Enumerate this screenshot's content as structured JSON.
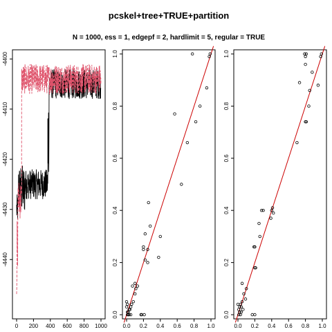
{
  "title": "pcskel+tree+TRUE+partition",
  "subtitle": "N = 1000, ess = 1, edgepf = 2, hardlimit = 5, regular = TRUE",
  "colors": {
    "trace_black": "#000000",
    "trace_red": "#DF536B",
    "diagonal": "#CC0000",
    "axis": "#000000"
  },
  "chart_data": [
    {
      "type": "line",
      "title": "",
      "xlabel": "",
      "ylabel": "",
      "xlim": [
        0,
        1000
      ],
      "ylim": [
        -4451,
        -4399
      ],
      "x_ticks": [
        0,
        200,
        400,
        600,
        800,
        1000
      ],
      "y_ticks": [
        -4400,
        -4410,
        -4420,
        -4430,
        -4440
      ],
      "series": [
        {
          "color": "#000000",
          "style": "solid",
          "segments": [
            {
              "x_range": [
                0,
                20
              ],
              "level": -4430,
              "spread": 3
            },
            {
              "x_range": [
                20,
                100
              ],
              "level": -4426,
              "spread": 5
            },
            {
              "x_range": [
                100,
                370
              ],
              "level": -4425,
              "spread": 3
            },
            {
              "x_range": [
                370,
                385
              ],
              "level": -4415,
              "spread": 8
            },
            {
              "x_range": [
                385,
                1000
              ],
              "level": -4405,
              "spread": 3
            }
          ]
        },
        {
          "color": "#DF536B",
          "style": "dashed",
          "segments": [
            {
              "x_range": [
                0,
                15
              ],
              "level": -4440,
              "spread": 8
            },
            {
              "x_range": [
                15,
                60
              ],
              "level": -4428,
              "spread": 4
            },
            {
              "x_range": [
                60,
                1000
              ],
              "level": -4404,
              "spread": 3
            }
          ]
        }
      ]
    },
    {
      "type": "scatter",
      "title": "",
      "xlabel": "",
      "ylabel": "",
      "xlim": [
        0,
        1
      ],
      "ylim": [
        0,
        1
      ],
      "x_ticks": [
        0,
        0.2,
        0.4,
        0.6,
        0.8,
        1
      ],
      "x_tick_labels": [
        "0.0",
        "0.2",
        "0.4",
        "0.6",
        "0.8",
        "1.0"
      ],
      "y_ticks": [
        0,
        0.2,
        0.4,
        0.6,
        0.8,
        1
      ],
      "y_tick_labels": [
        "0.0",
        "0.2",
        "0.4",
        "0.6",
        "0.8",
        "1.0"
      ],
      "diagonal": true,
      "points": [
        [
          0.78,
          1.0
        ],
        [
          0.99,
          1.0
        ],
        [
          0.98,
          0.99
        ],
        [
          0.95,
          0.87
        ],
        [
          0.87,
          0.8
        ],
        [
          0.82,
          0.74
        ],
        [
          0.57,
          0.77
        ],
        [
          0.72,
          0.66
        ],
        [
          0.65,
          0.5
        ],
        [
          0.26,
          0.43
        ],
        [
          0.28,
          0.34
        ],
        [
          0.22,
          0.31
        ],
        [
          0.4,
          0.3
        ],
        [
          0.2,
          0.26
        ],
        [
          0.2,
          0.25
        ],
        [
          0.25,
          0.25
        ],
        [
          0.38,
          0.22
        ],
        [
          0.22,
          0.21
        ],
        [
          0.25,
          0.2
        ],
        [
          0.1,
          0.12
        ],
        [
          0.07,
          0.11
        ],
        [
          0.13,
          0.11
        ],
        [
          0.11,
          0.1
        ],
        [
          0.1,
          0.08
        ],
        [
          0.08,
          0.05
        ],
        [
          0.06,
          0.04
        ],
        [
          0.05,
          0.03
        ],
        [
          0.04,
          0.02
        ],
        [
          0.03,
          0.02
        ],
        [
          0.02,
          0.01
        ],
        [
          0.01,
          0.01
        ],
        [
          0.02,
          0.0
        ],
        [
          0.01,
          0.0
        ],
        [
          0.03,
          0.0
        ],
        [
          0.05,
          0.0
        ],
        [
          0.0,
          0.03
        ],
        [
          0.01,
          0.04
        ],
        [
          0.0,
          0.05
        ],
        [
          0.18,
          0.0
        ],
        [
          0.21,
          0.0
        ],
        [
          0.17,
          0.0
        ]
      ]
    },
    {
      "type": "scatter",
      "title": "",
      "xlabel": "",
      "ylabel": "",
      "xlim": [
        0,
        1
      ],
      "ylim": [
        0,
        1
      ],
      "x_ticks": [
        0,
        0.2,
        0.4,
        0.6,
        0.8,
        1
      ],
      "x_tick_labels": [
        "0.0",
        "0.2",
        "0.4",
        "0.6",
        "0.8",
        "1.0"
      ],
      "y_ticks": [
        0,
        0.2,
        0.4,
        0.6,
        0.8,
        1
      ],
      "y_tick_labels": [
        "0.0",
        "0.2",
        "0.4",
        "0.6",
        "0.8",
        "1.0"
      ],
      "diagonal": true,
      "points": [
        [
          0.79,
          1.0
        ],
        [
          0.81,
          1.0
        ],
        [
          0.8,
          0.99
        ],
        [
          0.99,
          1.0
        ],
        [
          0.98,
          0.99
        ],
        [
          0.8,
          0.96
        ],
        [
          0.73,
          0.89
        ],
        [
          0.88,
          0.93
        ],
        [
          0.95,
          0.88
        ],
        [
          0.85,
          0.86
        ],
        [
          0.84,
          0.8
        ],
        [
          0.81,
          0.74
        ],
        [
          0.8,
          0.74
        ],
        [
          0.7,
          0.66
        ],
        [
          0.41,
          0.41
        ],
        [
          0.4,
          0.4
        ],
        [
          0.42,
          0.39
        ],
        [
          0.39,
          0.37
        ],
        [
          0.28,
          0.4
        ],
        [
          0.3,
          0.4
        ],
        [
          0.25,
          0.35
        ],
        [
          0.26,
          0.3
        ],
        [
          0.19,
          0.26
        ],
        [
          0.2,
          0.26
        ],
        [
          0.2,
          0.18
        ],
        [
          0.21,
          0.18
        ],
        [
          0.05,
          0.12
        ],
        [
          0.1,
          0.1
        ],
        [
          0.07,
          0.08
        ],
        [
          0.09,
          0.06
        ],
        [
          0.05,
          0.05
        ],
        [
          0.03,
          0.04
        ],
        [
          0.04,
          0.03
        ],
        [
          0.02,
          0.03
        ],
        [
          0.01,
          0.02
        ],
        [
          0.02,
          0.01
        ],
        [
          0.01,
          0.0
        ],
        [
          0.03,
          0.0
        ],
        [
          0.04,
          0.01
        ],
        [
          0.0,
          0.04
        ],
        [
          0.17,
          0.0
        ],
        [
          0.2,
          0.0
        ],
        [
          0.06,
          0.02
        ]
      ]
    }
  ]
}
